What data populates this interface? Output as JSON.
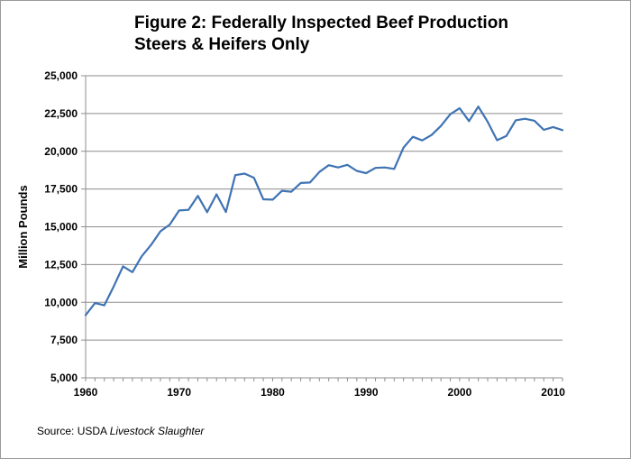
{
  "chart_data": {
    "type": "line",
    "title_line1": "Figure 2: Federally Inspected Beef Production",
    "title_line2": "Steers & Heifers Only",
    "xlabel": "",
    "ylabel": "Million Pounds",
    "xlim": [
      1960,
      2011
    ],
    "ylim": [
      5000,
      25000
    ],
    "x_ticks": [
      1960,
      1970,
      1980,
      1990,
      2000,
      2010
    ],
    "x_tick_labels": [
      "1960",
      "1970",
      "1980",
      "1990",
      "2000",
      "2010"
    ],
    "y_ticks": [
      5000,
      7500,
      10000,
      12500,
      15000,
      17500,
      20000,
      22500,
      25000
    ],
    "y_tick_labels": [
      "5,000",
      "7,500",
      "10,000",
      "12,500",
      "15,000",
      "17,500",
      "20,000",
      "22,500",
      "25,000"
    ],
    "grid": "horizontal",
    "legend": "none",
    "series": [
      {
        "color": "#3f73b3",
        "x": [
          1960,
          1961,
          1962,
          1963,
          1964,
          1965,
          1966,
          1967,
          1968,
          1969,
          1970,
          1971,
          1972,
          1973,
          1974,
          1975,
          1976,
          1977,
          1978,
          1979,
          1980,
          1981,
          1982,
          1983,
          1984,
          1985,
          1986,
          1987,
          1988,
          1989,
          1990,
          1991,
          1992,
          1993,
          1994,
          1995,
          1996,
          1997,
          1998,
          1999,
          2000,
          2001,
          2002,
          2003,
          2004,
          2005,
          2006,
          2007,
          2008,
          2009,
          2010,
          2011
        ],
        "y": [
          9150,
          9950,
          9800,
          11050,
          12380,
          12000,
          13050,
          13800,
          14700,
          15150,
          16080,
          16120,
          17050,
          15970,
          17150,
          15980,
          18420,
          18520,
          18250,
          16820,
          16800,
          17380,
          17320,
          17900,
          17930,
          18630,
          19080,
          18930,
          19100,
          18700,
          18550,
          18900,
          18930,
          18830,
          20250,
          20960,
          20720,
          21080,
          21680,
          22450,
          22850,
          22000,
          22960,
          21950,
          20730,
          21020,
          22050,
          22150,
          22020,
          21420,
          21600,
          21400
        ]
      }
    ],
    "source_prefix": "Source:  USDA ",
    "source_italic": "Livestock Slaughter"
  }
}
